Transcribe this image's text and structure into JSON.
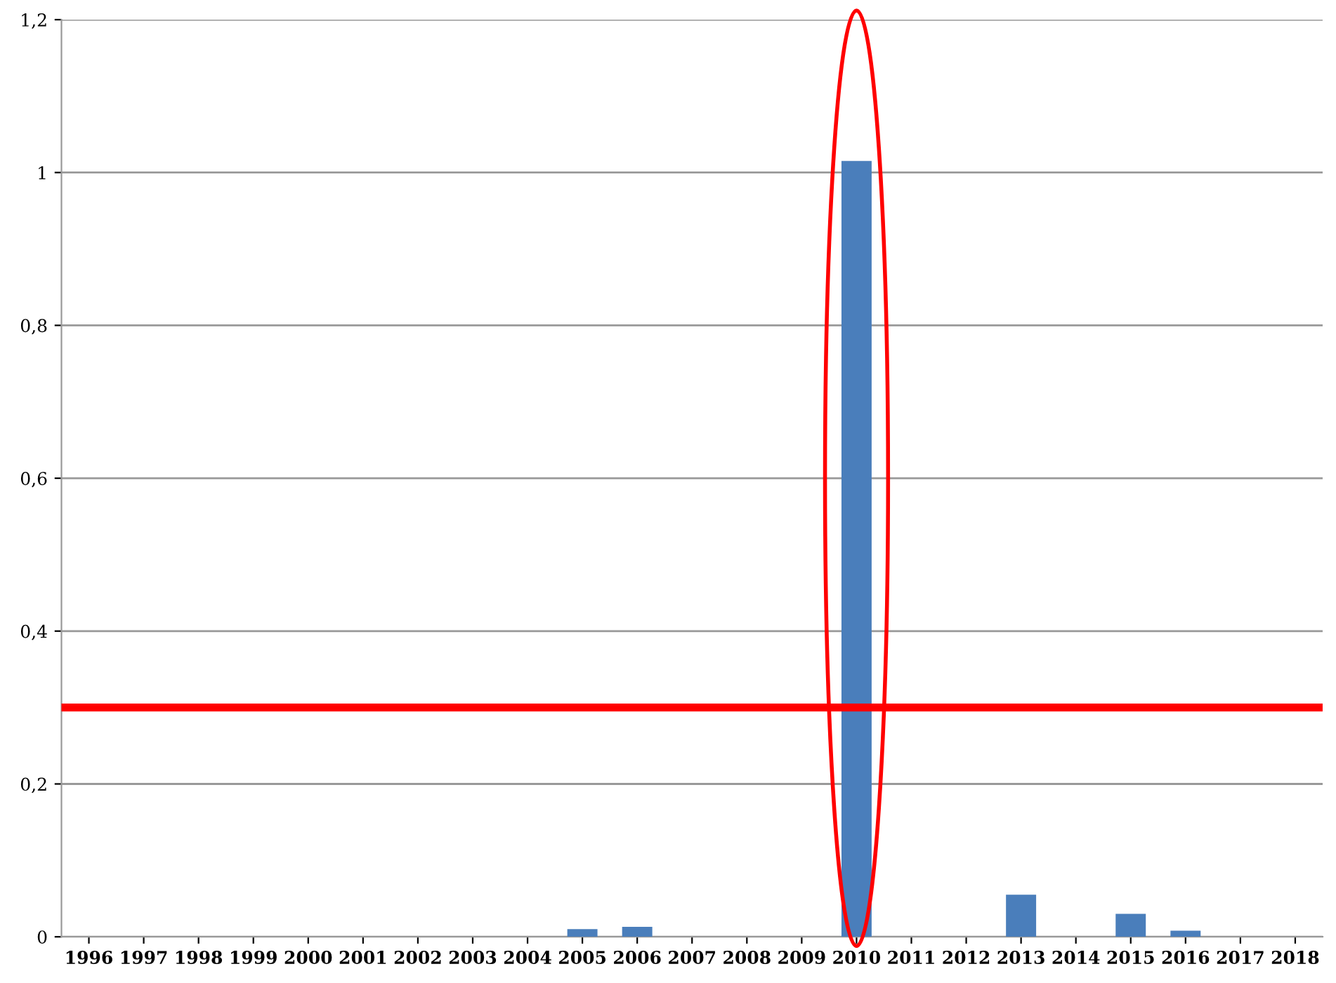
{
  "chart_data": {
    "type": "bar",
    "categories": [
      "1996",
      "1997",
      "1998",
      "1999",
      "2000",
      "2001",
      "2002",
      "2003",
      "2004",
      "2005",
      "2006",
      "2007",
      "2008",
      "2009",
      "2010",
      "2011",
      "2012",
      "2013",
      "2014",
      "2015",
      "2016",
      "2017",
      "2018"
    ],
    "values": [
      0,
      0,
      0,
      0,
      0,
      0,
      0,
      0,
      0,
      0.01,
      0.013,
      0,
      0,
      0,
      1.015,
      0,
      0,
      0.055,
      0,
      0.03,
      0.008,
      0,
      0
    ],
    "color": "#4a7ebb",
    "ylim": [
      0,
      1.2
    ],
    "yticks": [
      0,
      {
        "value": 0.2,
        "label": "0,2"
      },
      {
        "value": 0.4,
        "label": "0,4"
      },
      {
        "value": 0.6,
        "label": "0,6"
      },
      {
        "value": 0.8,
        "label": "0,8"
      },
      1,
      {
        "value": 1.2,
        "label": "1,2"
      }
    ],
    "grid": "y",
    "ref_lines": [
      {
        "axis": "y",
        "value": 0.3,
        "color": "#ff0000",
        "line_style": "solid"
      }
    ]
  }
}
